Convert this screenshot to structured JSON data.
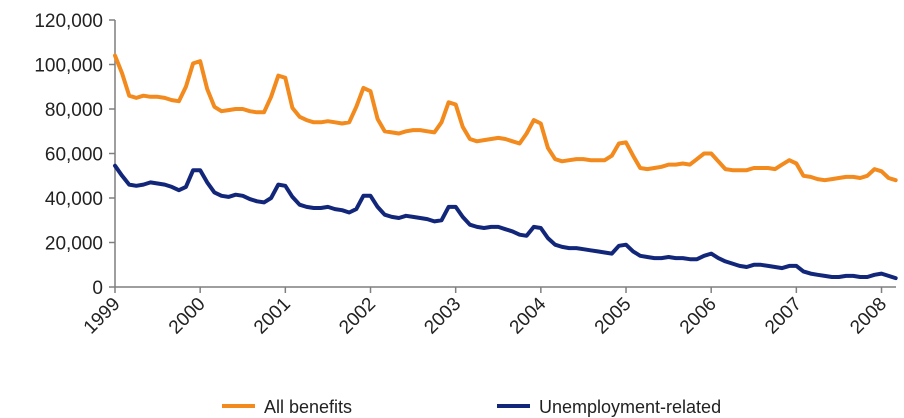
{
  "chart_data": {
    "type": "line",
    "title": "",
    "xlabel": "",
    "ylabel": "",
    "ylim": [
      0,
      120000
    ],
    "xlim": [
      1999.0,
      2008.17
    ],
    "y_ticks": [
      0,
      20000,
      40000,
      60000,
      80000,
      100000,
      120000
    ],
    "y_tick_labels": [
      "0",
      "20,000",
      "40,000",
      "60,000",
      "80,000",
      "100,000",
      "120,000"
    ],
    "x_ticks": [
      1999,
      2000,
      2001,
      2002,
      2003,
      2004,
      2005,
      2006,
      2007,
      2008
    ],
    "x_tick_labels": [
      "1999",
      "2000",
      "2001",
      "2002",
      "2003",
      "2004",
      "2005",
      "2006",
      "2007",
      "2008"
    ],
    "grid": false,
    "legend_position": "bottom",
    "series": [
      {
        "name": "All benefits",
        "color": "#F28A1E",
        "x": [
          1999.0,
          1999.083,
          1999.167,
          1999.25,
          1999.333,
          1999.417,
          1999.5,
          1999.583,
          1999.667,
          1999.75,
          1999.833,
          1999.917,
          2000.0,
          2000.083,
          2000.167,
          2000.25,
          2000.333,
          2000.417,
          2000.5,
          2000.583,
          2000.667,
          2000.75,
          2000.833,
          2000.917,
          2001.0,
          2001.083,
          2001.167,
          2001.25,
          2001.333,
          2001.417,
          2001.5,
          2001.583,
          2001.667,
          2001.75,
          2001.833,
          2001.917,
          2002.0,
          2002.083,
          2002.167,
          2002.25,
          2002.333,
          2002.417,
          2002.5,
          2002.583,
          2002.667,
          2002.75,
          2002.833,
          2002.917,
          2003.0,
          2003.083,
          2003.167,
          2003.25,
          2003.333,
          2003.417,
          2003.5,
          2003.583,
          2003.667,
          2003.75,
          2003.833,
          2003.917,
          2004.0,
          2004.083,
          2004.167,
          2004.25,
          2004.333,
          2004.417,
          2004.5,
          2004.583,
          2004.667,
          2004.75,
          2004.833,
          2004.917,
          2005.0,
          2005.083,
          2005.167,
          2005.25,
          2005.333,
          2005.417,
          2005.5,
          2005.583,
          2005.667,
          2005.75,
          2005.833,
          2005.917,
          2006.0,
          2006.083,
          2006.167,
          2006.25,
          2006.333,
          2006.417,
          2006.5,
          2006.583,
          2006.667,
          2006.75,
          2006.833,
          2006.917,
          2007.0,
          2007.083,
          2007.167,
          2007.25,
          2007.333,
          2007.417,
          2007.5,
          2007.583,
          2007.667,
          2007.75,
          2007.833,
          2007.917,
          2008.0,
          2008.083,
          2008.167
        ],
        "values": [
          104000,
          96000,
          86000,
          85000,
          86000,
          85500,
          85500,
          85000,
          84000,
          83500,
          90000,
          100500,
          101500,
          89000,
          81000,
          79000,
          79500,
          80000,
          80000,
          79000,
          78500,
          78500,
          85500,
          95000,
          94000,
          80500,
          76500,
          75000,
          74000,
          74000,
          74500,
          74000,
          73500,
          74000,
          81000,
          89500,
          88000,
          75500,
          70000,
          69500,
          69000,
          70000,
          70500,
          70500,
          70000,
          69500,
          74000,
          83000,
          82000,
          72000,
          66500,
          65500,
          66000,
          66500,
          67000,
          66500,
          65500,
          64500,
          69000,
          75000,
          73500,
          62500,
          57500,
          56500,
          57000,
          57500,
          57500,
          57000,
          57000,
          57000,
          59000,
          64500,
          65000,
          59000,
          53500,
          53000,
          53500,
          54000,
          55000,
          55000,
          55500,
          55000,
          57500,
          60000,
          60000,
          56500,
          53000,
          52500,
          52500,
          52500,
          53500,
          53500,
          53500,
          53000,
          55000,
          57000,
          55500,
          50000,
          49500,
          48500,
          48000,
          48500,
          49000,
          49500,
          49500,
          49000,
          50000,
          53000,
          52000,
          49000,
          48000
        ]
      },
      {
        "name": "Unemployment-related",
        "color": "#13277A",
        "x": [
          1999.0,
          1999.083,
          1999.167,
          1999.25,
          1999.333,
          1999.417,
          1999.5,
          1999.583,
          1999.667,
          1999.75,
          1999.833,
          1999.917,
          2000.0,
          2000.083,
          2000.167,
          2000.25,
          2000.333,
          2000.417,
          2000.5,
          2000.583,
          2000.667,
          2000.75,
          2000.833,
          2000.917,
          2001.0,
          2001.083,
          2001.167,
          2001.25,
          2001.333,
          2001.417,
          2001.5,
          2001.583,
          2001.667,
          2001.75,
          2001.833,
          2001.917,
          2002.0,
          2002.083,
          2002.167,
          2002.25,
          2002.333,
          2002.417,
          2002.5,
          2002.583,
          2002.667,
          2002.75,
          2002.833,
          2002.917,
          2003.0,
          2003.083,
          2003.167,
          2003.25,
          2003.333,
          2003.417,
          2003.5,
          2003.583,
          2003.667,
          2003.75,
          2003.833,
          2003.917,
          2004.0,
          2004.083,
          2004.167,
          2004.25,
          2004.333,
          2004.417,
          2004.5,
          2004.583,
          2004.667,
          2004.75,
          2004.833,
          2004.917,
          2005.0,
          2005.083,
          2005.167,
          2005.25,
          2005.333,
          2005.417,
          2005.5,
          2005.583,
          2005.667,
          2005.75,
          2005.833,
          2005.917,
          2006.0,
          2006.083,
          2006.167,
          2006.25,
          2006.333,
          2006.417,
          2006.5,
          2006.583,
          2006.667,
          2006.75,
          2006.833,
          2006.917,
          2007.0,
          2007.083,
          2007.167,
          2007.25,
          2007.333,
          2007.417,
          2007.5,
          2007.583,
          2007.667,
          2007.75,
          2007.833,
          2007.917,
          2008.0,
          2008.083,
          2008.167
        ],
        "values": [
          54500,
          50000,
          46000,
          45500,
          46000,
          47000,
          46500,
          46000,
          45000,
          43500,
          45000,
          52500,
          52500,
          47000,
          42500,
          41000,
          40500,
          41500,
          41000,
          39500,
          38500,
          38000,
          40000,
          46000,
          45500,
          40500,
          37000,
          36000,
          35500,
          35500,
          36000,
          35000,
          34500,
          33500,
          35000,
          41000,
          41000,
          36000,
          32500,
          31500,
          31000,
          32000,
          31500,
          31000,
          30500,
          29500,
          30000,
          36000,
          36000,
          31500,
          28000,
          27000,
          26500,
          27000,
          27000,
          26000,
          25000,
          23500,
          23000,
          27000,
          26500,
          22000,
          19000,
          18000,
          17500,
          17500,
          17000,
          16500,
          16000,
          15500,
          15000,
          18500,
          19000,
          16000,
          14000,
          13500,
          13000,
          13000,
          13500,
          13000,
          13000,
          12500,
          12500,
          14000,
          15000,
          13000,
          11500,
          10500,
          9500,
          9000,
          10000,
          10000,
          9500,
          9000,
          8500,
          9500,
          9500,
          7000,
          6000,
          5500,
          5000,
          4500,
          4500,
          5000,
          5000,
          4500,
          4500,
          5500,
          6000,
          5000,
          4000
        ]
      }
    ]
  }
}
